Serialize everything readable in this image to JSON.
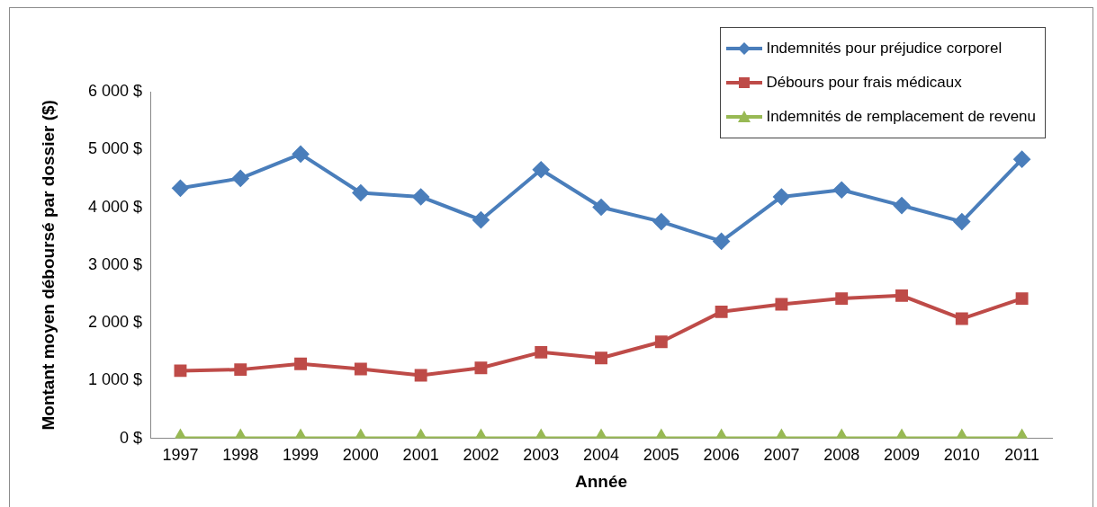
{
  "chart_data": {
    "type": "line",
    "xlabel": "Année",
    "ylabel": "Montant moyen déboursé par dossier ($)",
    "categories": [
      "1997",
      "1998",
      "1999",
      "2000",
      "2001",
      "2002",
      "2003",
      "2004",
      "2005",
      "2006",
      "2007",
      "2008",
      "2009",
      "2010",
      "2011"
    ],
    "ylim": [
      0,
      6000
    ],
    "yticks": [
      {
        "value": 0,
        "label": "0 $"
      },
      {
        "value": 1000,
        "label": "1 000 $"
      },
      {
        "value": 2000,
        "label": "2 000 $"
      },
      {
        "value": 3000,
        "label": "3 000 $"
      },
      {
        "value": 4000,
        "label": "4 000 $"
      },
      {
        "value": 5000,
        "label": "5 000 $"
      },
      {
        "value": 6000,
        "label": "6 000 $"
      }
    ],
    "grid": false,
    "legend": "top right",
    "series": [
      {
        "name": "Indemnités pour préjudice corporel",
        "color": "#4a7ebb",
        "marker": "diamond",
        "values": [
          4330,
          4500,
          4920,
          4250,
          4180,
          3780,
          4650,
          4000,
          3750,
          3410,
          4180,
          4300,
          4030,
          3750,
          4830
        ]
      },
      {
        "name": "Débours pour frais médicaux",
        "color": "#be4b48",
        "marker": "square",
        "values": [
          1170,
          1190,
          1290,
          1200,
          1090,
          1220,
          1490,
          1390,
          1670,
          2190,
          2320,
          2420,
          2470,
          2070,
          2420
        ]
      },
      {
        "name": "Indemnités de remplacement de revenu",
        "color": "#98b954",
        "marker": "triangle",
        "values": [
          0,
          0,
          0,
          0,
          0,
          0,
          0,
          0,
          0,
          0,
          0,
          0,
          0,
          0,
          0
        ]
      }
    ]
  }
}
